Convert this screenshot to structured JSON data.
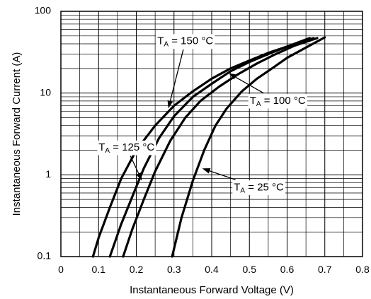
{
  "chart_data": {
    "type": "line",
    "xlabel": "Instantaneous Forward Voltage (V)",
    "ylabel": "Instantaneous Forward Current (A)",
    "xlim": [
      0,
      0.8
    ],
    "ylim": [
      0.1,
      100
    ],
    "yscale": "log",
    "grid": true,
    "x_ticks": [
      "0",
      "0.1",
      "0.2",
      "0.3",
      "0.4",
      "0.5",
      "0.6",
      "0.7",
      "0.8"
    ],
    "y_ticks": [
      "0.1",
      "1",
      "10",
      "100"
    ],
    "series": [
      {
        "label_main": "T",
        "label_sub": "A",
        "label_rest": " = 150 °C",
        "points": [
          [
            0.085,
            0.1
          ],
          [
            0.1,
            0.17
          ],
          [
            0.13,
            0.4
          ],
          [
            0.16,
            0.9
          ],
          [
            0.2,
            2.0
          ],
          [
            0.25,
            4.0
          ],
          [
            0.3,
            7.0
          ],
          [
            0.35,
            10.5
          ],
          [
            0.4,
            15
          ],
          [
            0.45,
            20
          ],
          [
            0.5,
            25
          ],
          [
            0.55,
            31
          ],
          [
            0.6,
            37
          ],
          [
            0.65,
            44
          ],
          [
            0.67,
            47
          ]
        ]
      },
      {
        "label_main": "T",
        "label_sub": "A",
        "label_rest": " = 125 °C",
        "points": [
          [
            0.13,
            0.1
          ],
          [
            0.16,
            0.25
          ],
          [
            0.19,
            0.55
          ],
          [
            0.22,
            1.2
          ],
          [
            0.26,
            2.8
          ],
          [
            0.3,
            5.2
          ],
          [
            0.35,
            9.0
          ],
          [
            0.4,
            13
          ],
          [
            0.45,
            18.5
          ],
          [
            0.5,
            24
          ],
          [
            0.55,
            30
          ],
          [
            0.6,
            37
          ],
          [
            0.66,
            47
          ]
        ]
      },
      {
        "label_main": "T",
        "label_sub": "A",
        "label_rest": " = 100 °C",
        "points": [
          [
            0.165,
            0.1
          ],
          [
            0.19,
            0.22
          ],
          [
            0.22,
            0.5
          ],
          [
            0.25,
            1.1
          ],
          [
            0.29,
            2.6
          ],
          [
            0.33,
            5.0
          ],
          [
            0.37,
            8.0
          ],
          [
            0.42,
            12
          ],
          [
            0.47,
            17
          ],
          [
            0.52,
            23
          ],
          [
            0.57,
            30
          ],
          [
            0.62,
            38
          ],
          [
            0.68,
            47
          ]
        ]
      },
      {
        "label_main": "T",
        "label_sub": "A",
        "label_rest": " = 25 °C",
        "points": [
          [
            0.295,
            0.1
          ],
          [
            0.32,
            0.3
          ],
          [
            0.35,
            0.85
          ],
          [
            0.38,
            2.0
          ],
          [
            0.41,
            4.0
          ],
          [
            0.44,
            6.5
          ],
          [
            0.48,
            10.5
          ],
          [
            0.52,
            15
          ],
          [
            0.56,
            20
          ],
          [
            0.6,
            27
          ],
          [
            0.65,
            36
          ],
          [
            0.7,
            48
          ]
        ]
      }
    ],
    "annotations": [
      {
        "series": 0,
        "text_x": 0.33,
        "text_y": 43,
        "tip_x": 0.285,
        "tip_y": 6.5,
        "anchor": "middle"
      },
      {
        "series": 1,
        "text_x": 0.1,
        "text_y": 2.15,
        "tip_x": 0.215,
        "tip_y": 0.85,
        "anchor": "start"
      },
      {
        "series": 2,
        "text_x": 0.575,
        "text_y": 8.0,
        "tip_x": 0.445,
        "tip_y": 17.5,
        "anchor": "middle"
      },
      {
        "series": 3,
        "text_x": 0.525,
        "text_y": 0.7,
        "tip_x": 0.375,
        "tip_y": 1.2,
        "anchor": "middle"
      }
    ]
  }
}
